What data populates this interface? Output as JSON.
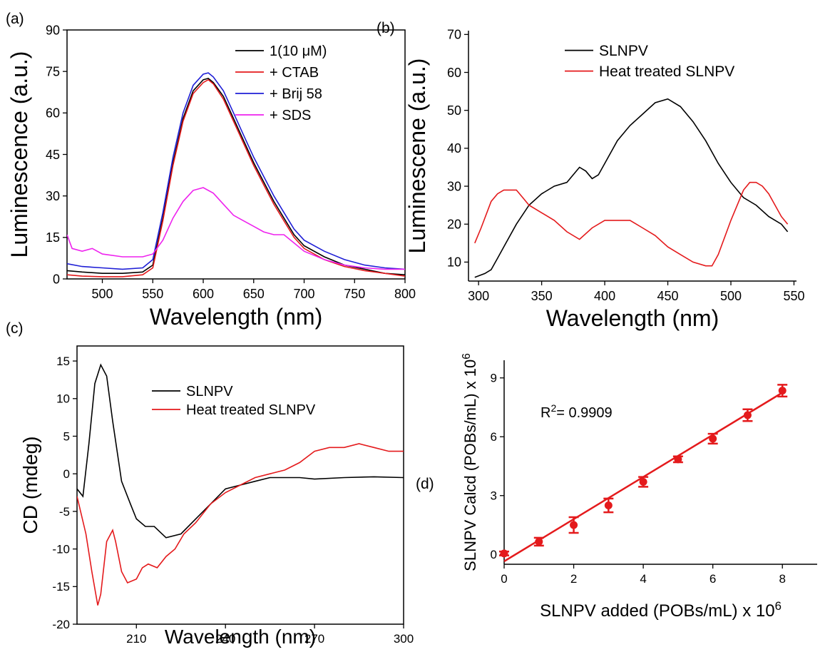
{
  "chart_data": [
    {
      "panel_label": "(a)",
      "type": "line",
      "xlabel": "Wavelength (nm)",
      "ylabel": "Luminescence (a.u.)",
      "xlim": [
        465,
        800
      ],
      "ylim": [
        0,
        90
      ],
      "xticks": [
        500,
        550,
        600,
        650,
        700,
        750,
        800
      ],
      "yticks": [
        0,
        15,
        30,
        45,
        60,
        75,
        90
      ],
      "legend_position": "top-right",
      "series": [
        {
          "name": "1(10 μM)",
          "color": "#000000",
          "x": [
            465,
            480,
            500,
            520,
            540,
            550,
            560,
            570,
            580,
            590,
            600,
            605,
            610,
            620,
            630,
            640,
            650,
            660,
            670,
            680,
            690,
            700,
            720,
            740,
            760,
            780,
            800
          ],
          "y": [
            3,
            2.5,
            2,
            2,
            2.5,
            5,
            22,
            42,
            58,
            68,
            72,
            72.5,
            71,
            66,
            58,
            50,
            42,
            35,
            28,
            22,
            16,
            12,
            8,
            5,
            3.5,
            2,
            1.5
          ]
        },
        {
          "name": "+ CTAB",
          "color": "#e41a1c",
          "x": [
            465,
            480,
            500,
            520,
            540,
            550,
            560,
            570,
            580,
            590,
            600,
            605,
            610,
            620,
            630,
            640,
            650,
            660,
            670,
            680,
            690,
            700,
            720,
            740,
            760,
            780,
            800
          ],
          "y": [
            1.5,
            1,
            0.8,
            0.8,
            1.5,
            4,
            21,
            41,
            57,
            67,
            71,
            72,
            70.5,
            65,
            57,
            49,
            41,
            34,
            27,
            21,
            15,
            11,
            7,
            4.5,
            3,
            2,
            1
          ]
        },
        {
          "name": "+ Brij 58",
          "color": "#1f1fd6",
          "x": [
            465,
            480,
            500,
            520,
            540,
            550,
            560,
            570,
            580,
            590,
            600,
            605,
            610,
            620,
            630,
            640,
            650,
            660,
            670,
            680,
            690,
            700,
            720,
            740,
            760,
            780,
            800
          ],
          "y": [
            5.5,
            4.5,
            4,
            3.5,
            4,
            7,
            24,
            44,
            60,
            70,
            74,
            74.5,
            73,
            68,
            60,
            52,
            44,
            37,
            30,
            24,
            18,
            14,
            10,
            7,
            5,
            4,
            3.5
          ]
        },
        {
          "name": "+ SDS",
          "color": "#ee22ee",
          "x": [
            465,
            470,
            480,
            490,
            500,
            520,
            540,
            550,
            560,
            570,
            580,
            590,
            600,
            610,
            620,
            630,
            640,
            650,
            660,
            670,
            680,
            690,
            700,
            720,
            740,
            760,
            780,
            800
          ],
          "y": [
            16,
            11,
            10,
            11,
            9,
            8,
            8,
            9,
            14,
            22,
            28,
            32,
            33,
            31,
            27,
            23,
            21,
            19,
            17,
            16,
            16,
            13,
            10,
            7,
            5,
            4,
            3.5,
            3.5
          ]
        }
      ]
    },
    {
      "panel_label": "(b)",
      "type": "line",
      "xlabel": "Wavelength (nm)",
      "ylabel": "Luminescene (a.u.)",
      "xlim": [
        292,
        552
      ],
      "ylim": [
        5,
        71
      ],
      "xticks": [
        300,
        350,
        400,
        450,
        500,
        550
      ],
      "yticks": [
        10,
        20,
        30,
        40,
        50,
        60,
        70
      ],
      "legend_position": "top-center",
      "series": [
        {
          "name": "SLNPV",
          "color": "#000000",
          "x": [
            297,
            305,
            310,
            315,
            320,
            330,
            340,
            350,
            360,
            370,
            375,
            380,
            385,
            390,
            395,
            400,
            410,
            420,
            430,
            440,
            450,
            460,
            470,
            480,
            490,
            500,
            510,
            520,
            530,
            540,
            545
          ],
          "y": [
            6,
            7,
            8,
            11,
            14,
            20,
            25,
            28,
            30,
            31,
            33,
            35,
            34,
            32,
            33,
            36,
            42,
            46,
            49,
            52,
            53,
            51,
            47,
            42,
            36,
            31,
            27,
            25,
            22,
            20,
            18
          ]
        },
        {
          "name": "Heat treated SLNPV",
          "color": "#e41a1c",
          "x": [
            297,
            302,
            310,
            315,
            320,
            330,
            335,
            340,
            350,
            360,
            370,
            380,
            390,
            400,
            410,
            420,
            430,
            440,
            450,
            460,
            470,
            480,
            485,
            490,
            500,
            510,
            515,
            520,
            525,
            530,
            540,
            545
          ],
          "y": [
            15,
            19,
            26,
            28,
            29,
            29,
            27,
            25,
            23,
            21,
            18,
            16,
            19,
            21,
            21,
            21,
            19,
            17,
            14,
            12,
            10,
            9,
            9,
            12,
            21,
            29,
            31,
            31,
            30,
            28,
            22,
            20
          ]
        }
      ]
    },
    {
      "panel_label": "(c)",
      "type": "line",
      "xlabel": "Wavelength (nm)",
      "ylabel": "CD (mdeg)",
      "xlim": [
        190,
        300
      ],
      "ylim": [
        -20,
        17
      ],
      "xticks": [
        210,
        240,
        270,
        300
      ],
      "yticks": [
        -20,
        -15,
        -10,
        -5,
        0,
        5,
        10,
        15
      ],
      "legend_position": "top-right",
      "series": [
        {
          "name": "SLNPV",
          "color": "#000000",
          "x": [
            190,
            192,
            194,
            196,
            198,
            200,
            202,
            205,
            208,
            210,
            213,
            216,
            220,
            225,
            230,
            235,
            240,
            245,
            250,
            255,
            260,
            265,
            270,
            280,
            290,
            300
          ],
          "y": [
            -2,
            -3,
            4,
            12,
            14.5,
            13,
            7,
            -1,
            -4,
            -6,
            -7,
            -7,
            -8.5,
            -8,
            -6,
            -4,
            -2,
            -1.5,
            -1,
            -0.5,
            -0.5,
            -0.5,
            -0.7,
            -0.5,
            -0.4,
            -0.5
          ]
        },
        {
          "name": "Heat treated SLNPV",
          "color": "#e41a1c",
          "x": [
            190,
            193,
            195,
            197,
            198,
            200,
            202,
            203,
            205,
            207,
            210,
            212,
            214,
            217,
            220,
            223,
            226,
            230,
            235,
            240,
            245,
            250,
            255,
            260,
            265,
            270,
            275,
            280,
            285,
            290,
            295,
            300
          ],
          "y": [
            -3,
            -8,
            -13,
            -17.5,
            -16,
            -9,
            -7.5,
            -9,
            -13,
            -14.5,
            -14,
            -12.5,
            -12,
            -12.5,
            -11,
            -10,
            -8,
            -6.5,
            -4,
            -2.5,
            -1.5,
            -0.5,
            0,
            0.5,
            1.5,
            3,
            3.5,
            3.5,
            4,
            3.5,
            3,
            3
          ]
        }
      ]
    },
    {
      "panel_label": "(d)",
      "type": "scatter",
      "xlabel_text": "SLNPV added (POBs/mL) x 10",
      "xlabel_exp": "6",
      "ylabel_text": "SLNPV Calcd (POBs/mL) x 10",
      "ylabel_exp": "6",
      "xlim": [
        0,
        9
      ],
      "ylim": [
        -0.5,
        9.9
      ],
      "xticks": [
        0,
        2,
        4,
        6,
        8
      ],
      "yticks": [
        0,
        3,
        6,
        9
      ],
      "annotation_prefix": "R",
      "annotation_exp": "2",
      "annotation_value": "= 0.9909",
      "color": "#e41a1c",
      "points": [
        {
          "x": 0,
          "y": 0.05,
          "err": 0.1
        },
        {
          "x": 1,
          "y": 0.65,
          "err": 0.2
        },
        {
          "x": 2,
          "y": 1.5,
          "err": 0.4
        },
        {
          "x": 3,
          "y": 2.5,
          "err": 0.35
        },
        {
          "x": 4,
          "y": 3.7,
          "err": 0.25
        },
        {
          "x": 5,
          "y": 4.85,
          "err": 0.15
        },
        {
          "x": 6,
          "y": 5.9,
          "err": 0.25
        },
        {
          "x": 7,
          "y": 7.1,
          "err": 0.3
        },
        {
          "x": 8,
          "y": 8.35,
          "err": 0.3
        }
      ],
      "fit_line": {
        "x": [
          0,
          8
        ],
        "y": [
          -0.35,
          8.25
        ]
      }
    }
  ]
}
